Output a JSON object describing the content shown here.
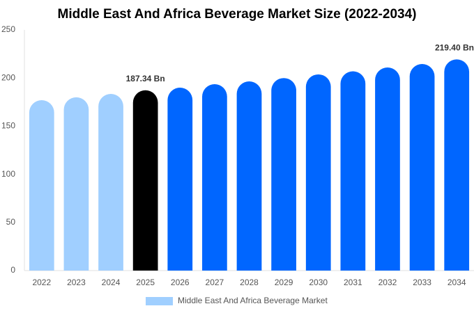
{
  "chart_data": {
    "type": "bar",
    "title": "Middle East And Africa Beverage Market Size (2022-2034)",
    "categories": [
      "2022",
      "2023",
      "2024",
      "2025",
      "2026",
      "2027",
      "2028",
      "2029",
      "2030",
      "2031",
      "2032",
      "2033",
      "2034"
    ],
    "series": [
      {
        "name": "Middle East And Africa Beverage Market",
        "color": "#a0cfff",
        "colors": [
          "#a0cfff",
          "#a0cfff",
          "#a0cfff",
          "#000000",
          "#0066ff",
          "#0066ff",
          "#0066ff",
          "#0066ff",
          "#0066ff",
          "#0066ff",
          "#0066ff",
          "#0066ff",
          "#0066ff"
        ],
        "values": [
          177,
          180,
          183.5,
          187.34,
          190,
          193.6,
          196.5,
          200,
          203.8,
          207,
          211,
          214.6,
          219.4
        ],
        "value_labels": [
          null,
          null,
          null,
          "187.34 Bn",
          null,
          null,
          null,
          null,
          null,
          null,
          null,
          null,
          "219.40 Bn"
        ]
      }
    ],
    "ylim": [
      0,
      250
    ],
    "yticks": [
      0,
      50,
      100,
      150,
      200,
      250
    ],
    "grid": false
  }
}
